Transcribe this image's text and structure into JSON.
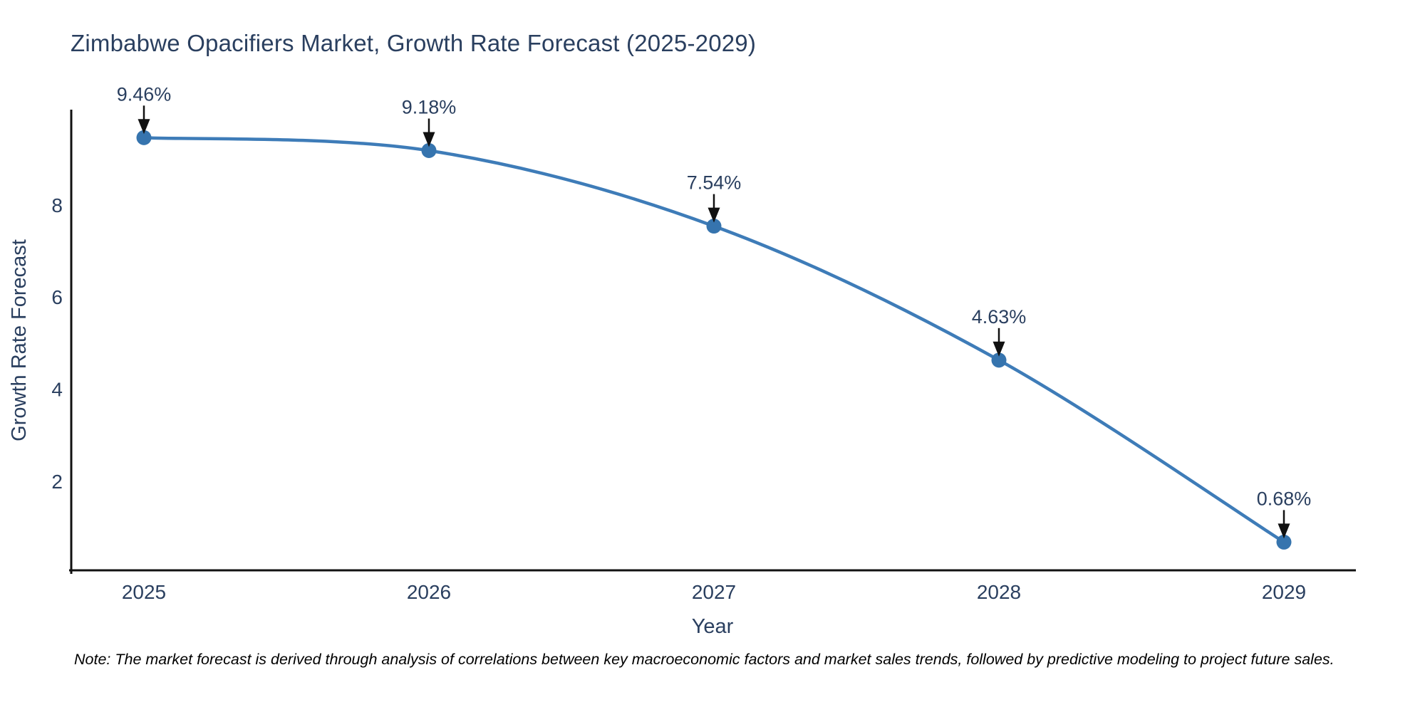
{
  "title": "Zimbabwe Opacifiers Market, Growth Rate Forecast (2025-2029)",
  "note": "Note: The market forecast is derived through analysis of correlations between key macroeconomic factors and market sales trends, followed by predictive modeling to project future sales.",
  "chart_data": {
    "type": "line",
    "title": "Zimbabwe Opacifiers Market, Growth Rate Forecast (2025-2029)",
    "xlabel": "Year",
    "ylabel": "Growth Rate Forecast",
    "categories": [
      "2025",
      "2026",
      "2027",
      "2028",
      "2029"
    ],
    "series": [
      {
        "name": "Growth Rate Forecast",
        "values": [
          9.46,
          9.18,
          7.54,
          4.63,
          0.68
        ],
        "point_labels": [
          "9.46%",
          "9.18%",
          "7.54%",
          "4.63%",
          "0.68%"
        ]
      }
    ],
    "yticks": [
      2,
      4,
      6,
      8
    ],
    "ylim": [
      0.05,
      10.05
    ],
    "line_shape": "spline",
    "grid": false,
    "legend": "none",
    "annotations_style": "value label with black arrow pointing down at each marker",
    "colors": {
      "line": "#3E7CB8",
      "marker": "#3674AE",
      "text": "#2a3f5f",
      "axis": "#111111",
      "arrow": "#111111",
      "note": "#000000",
      "background": "#ffffff"
    }
  }
}
